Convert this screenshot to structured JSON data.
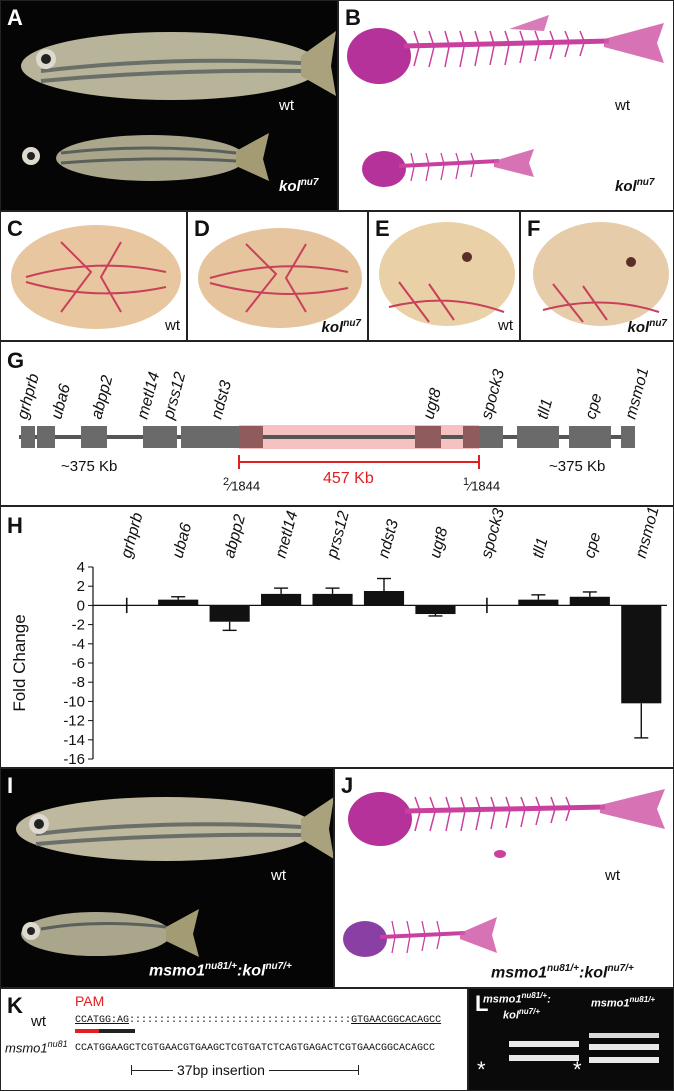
{
  "figure": {
    "A": {
      "label": "A",
      "wt": "wt",
      "mut_base": "kol",
      "mut_sup": "nu7"
    },
    "B": {
      "label": "B",
      "wt": "wt",
      "mut_base": "kol",
      "mut_sup": "nu7"
    },
    "C": {
      "label": "C",
      "tag": "wt"
    },
    "D": {
      "label": "D",
      "tag_base": "kol",
      "tag_sup": "nu7"
    },
    "E": {
      "label": "E",
      "tag": "wt"
    },
    "F": {
      "label": "F",
      "tag_base": "kol",
      "tag_sup": "nu7"
    },
    "G": {
      "label": "G",
      "genes": [
        "grhprb",
        "uba6",
        "abpp2",
        "metl14",
        "prss12",
        "ndst3",
        "ugt8",
        "spock3",
        "tll1",
        "cpe",
        "msmo1"
      ],
      "left_span": "~375 Kb",
      "right_span": "~375 Kb",
      "deletion": "457 Kb",
      "left_marker_num": "2",
      "left_marker_den": "1844",
      "right_marker_num": "1",
      "right_marker_den": "1844"
    },
    "H": {
      "label": "H"
    },
    "I": {
      "label": "I",
      "wt": "wt",
      "geno_a": "msmo1",
      "geno_a_sup": "nu81/+",
      "geno_sep": ":",
      "geno_b": "kol",
      "geno_b_sup": "nu7/+"
    },
    "J": {
      "label": "J",
      "wt": "wt",
      "geno_a": "msmo1",
      "geno_a_sup": "nu81/+",
      "geno_sep": ":",
      "geno_b": "kol",
      "geno_b_sup": "nu7/+"
    },
    "K": {
      "label": "K",
      "pam": "PAM",
      "wt_label": "wt",
      "wt_left": "CCATGG:AG",
      "wt_gap": ":::::::::::::::::::::::::::::::::::::",
      "wt_right": "GTGAACGGCACAGCC",
      "mut_label_base": "msmo1",
      "mut_label_sup": "nu81",
      "mut_seq": "CCATGGAAGCTCGTGAACGTGAAGCTCGTGATCTCAGTGAGACTCGTGAACGGCACAGCC",
      "insertion": "37bp insertion"
    },
    "L": {
      "label": "L",
      "lane1_base": "msmo1",
      "lane1_sup": "nu81/+",
      "lane1_sep": ":",
      "lane1_b_base": "kol",
      "lane1_b_sup": "nu7/+",
      "lane2_base": "msmo1",
      "lane2_sup": "nu81/+",
      "star": "*"
    }
  },
  "chart_data": {
    "type": "bar",
    "categories": [
      "grhprb",
      "uba6",
      "abpp2",
      "metl14",
      "prss12",
      "ndst3",
      "ugt8",
      "spock3",
      "tll1",
      "cpe",
      "msmo1"
    ],
    "values": [
      0,
      0.6,
      -1.7,
      1.2,
      1.2,
      1.5,
      -0.9,
      0,
      0.6,
      0.9,
      -10.2
    ],
    "errors": [
      0.8,
      0.3,
      0.9,
      0.6,
      0.6,
      1.3,
      0.2,
      0.8,
      0.5,
      0.5,
      3.6
    ],
    "ylabel": "Fold Change",
    "ylim": [
      -16,
      4
    ],
    "yticks": [
      "4",
      "2",
      "0",
      "-2",
      "-4",
      "-6",
      "-8",
      "-10",
      "-12",
      "-14",
      "-16"
    ],
    "bar_color": "#111111",
    "grid": false
  }
}
